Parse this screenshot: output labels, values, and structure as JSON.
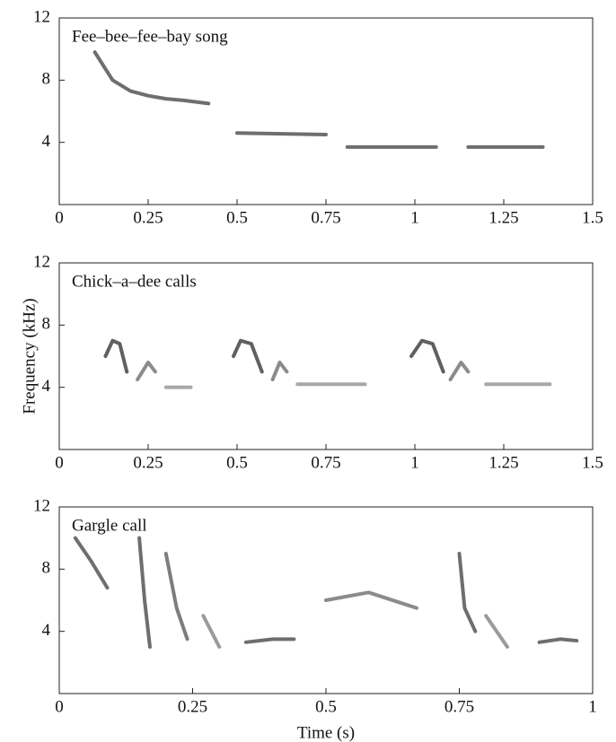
{
  "chart_data": [
    {
      "type": "spectrogram",
      "title": "Fee–bee–fee–bay song",
      "xlim": [
        0,
        1.5
      ],
      "xticks": [
        0,
        0.25,
        0.5,
        0.75,
        1,
        1.25,
        1.5
      ],
      "ylim": [
        0,
        12
      ],
      "yticks": [
        4,
        8,
        12
      ],
      "series": [
        {
          "color": "#555555",
          "x": [
            0.1,
            0.15,
            0.2,
            0.25,
            0.3,
            0.35,
            0.42
          ],
          "values": [
            9.8,
            8.0,
            7.3,
            7.0,
            6.8,
            6.7,
            6.5
          ]
        },
        {
          "color": "#555555",
          "x": [
            0.5,
            0.75
          ],
          "values": [
            4.6,
            4.5
          ]
        },
        {
          "color": "#555555",
          "x": [
            0.81,
            1.06
          ],
          "values": [
            3.7,
            3.7
          ]
        },
        {
          "color": "#555555",
          "x": [
            1.15,
            1.36
          ],
          "values": [
            3.7,
            3.7
          ]
        }
      ]
    },
    {
      "type": "spectrogram",
      "title": "Chick–a–dee calls",
      "ylabel": "Frequency (kHz)",
      "xlim": [
        0,
        1.5
      ],
      "xticks": [
        0,
        0.25,
        0.5,
        0.75,
        1,
        1.25,
        1.5
      ],
      "ylim": [
        0,
        12
      ],
      "yticks": [
        4,
        8,
        12
      ],
      "series": [
        {
          "color": "#444444",
          "x": [
            0.13,
            0.15,
            0.17,
            0.19
          ],
          "values": [
            6.0,
            7.0,
            6.8,
            5.0
          ]
        },
        {
          "color": "#777777",
          "x": [
            0.22,
            0.25,
            0.27
          ],
          "values": [
            4.5,
            5.6,
            5.0
          ]
        },
        {
          "color": "#999999",
          "x": [
            0.3,
            0.37
          ],
          "values": [
            4.0,
            4.0
          ]
        },
        {
          "color": "#444444",
          "x": [
            0.49,
            0.51,
            0.54,
            0.57
          ],
          "values": [
            6.0,
            7.0,
            6.8,
            5.0
          ]
        },
        {
          "color": "#777777",
          "x": [
            0.6,
            0.62,
            0.64
          ],
          "values": [
            4.5,
            5.6,
            5.0
          ]
        },
        {
          "color": "#999999",
          "x": [
            0.67,
            0.86
          ],
          "values": [
            4.2,
            4.2
          ]
        },
        {
          "color": "#444444",
          "x": [
            0.99,
            1.02,
            1.05,
            1.08
          ],
          "values": [
            6.0,
            7.0,
            6.8,
            5.0
          ]
        },
        {
          "color": "#777777",
          "x": [
            1.1,
            1.13,
            1.15
          ],
          "values": [
            4.5,
            5.6,
            5.0
          ]
        },
        {
          "color": "#999999",
          "x": [
            1.2,
            1.38
          ],
          "values": [
            4.2,
            4.2
          ]
        }
      ]
    },
    {
      "type": "spectrogram",
      "title": "Gargle call",
      "xlabel": "Time (s)",
      "xlim": [
        0,
        1
      ],
      "xticks": [
        0,
        0.25,
        0.5,
        0.75,
        1
      ],
      "ylim": [
        0,
        12
      ],
      "yticks": [
        4,
        8,
        12
      ],
      "series": [
        {
          "color": "#555555",
          "x": [
            0.03,
            0.06,
            0.09
          ],
          "values": [
            10.0,
            8.5,
            6.8
          ]
        },
        {
          "color": "#555555",
          "x": [
            0.15,
            0.16,
            0.17
          ],
          "values": [
            10.0,
            6.0,
            3.0
          ]
        },
        {
          "color": "#666666",
          "x": [
            0.2,
            0.22,
            0.24
          ],
          "values": [
            9.0,
            5.5,
            3.5
          ]
        },
        {
          "color": "#888888",
          "x": [
            0.27,
            0.3
          ],
          "values": [
            5.0,
            3.0
          ]
        },
        {
          "color": "#555555",
          "x": [
            0.35,
            0.4,
            0.44
          ],
          "values": [
            3.3,
            3.5,
            3.5
          ]
        },
        {
          "color": "#777777",
          "x": [
            0.5,
            0.58,
            0.67
          ],
          "values": [
            6.0,
            6.5,
            5.5
          ]
        },
        {
          "color": "#555555",
          "x": [
            0.75,
            0.76,
            0.78
          ],
          "values": [
            9.0,
            5.5,
            4.0
          ]
        },
        {
          "color": "#888888",
          "x": [
            0.8,
            0.84
          ],
          "values": [
            5.0,
            3.0
          ]
        },
        {
          "color": "#555555",
          "x": [
            0.9,
            0.94,
            0.97
          ],
          "values": [
            3.3,
            3.5,
            3.4
          ]
        }
      ]
    }
  ]
}
